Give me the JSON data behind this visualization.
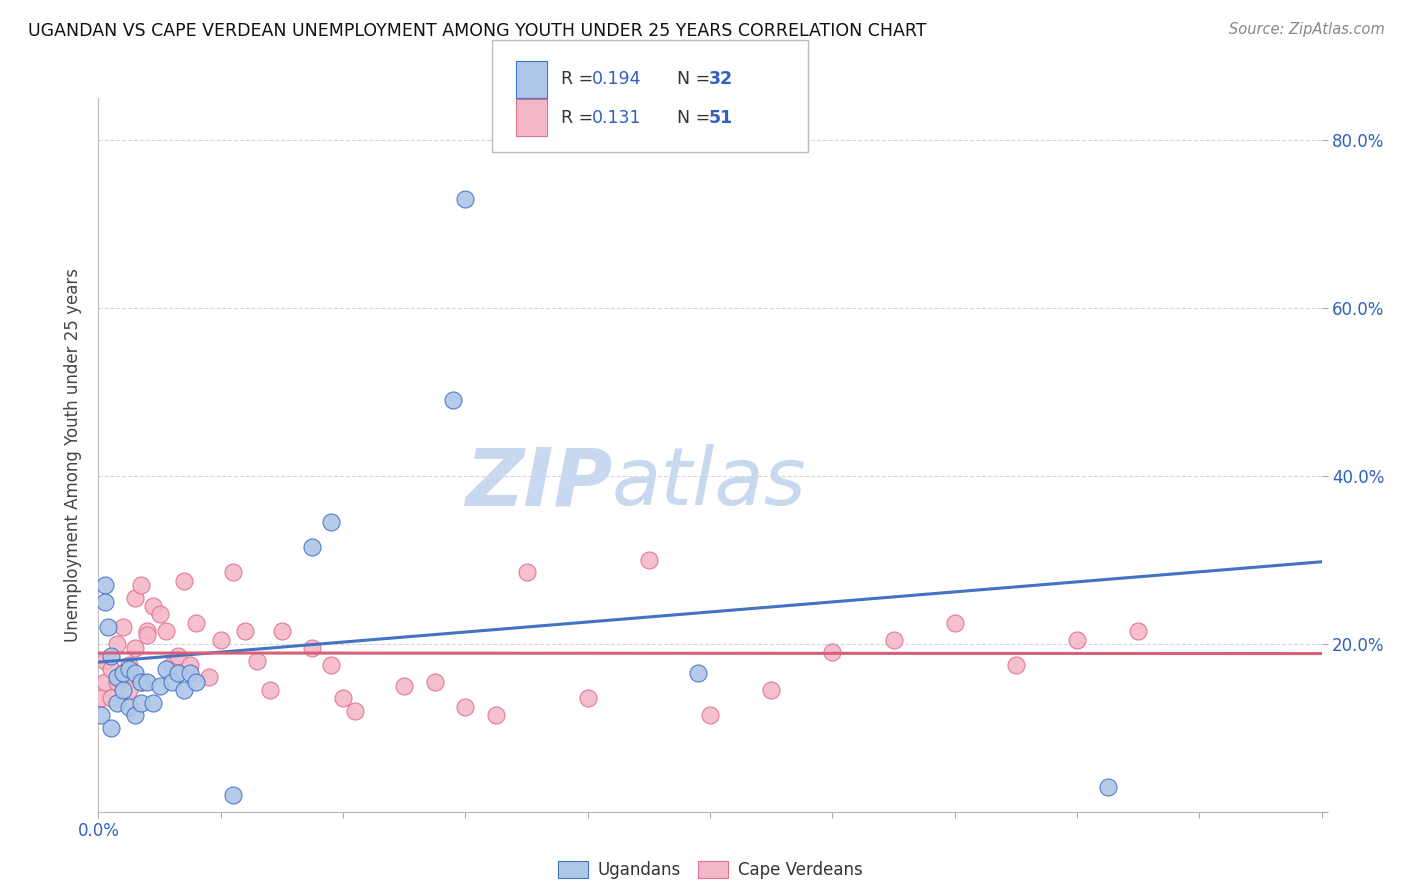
{
  "title": "UGANDAN VS CAPE VERDEAN UNEMPLOYMENT AMONG YOUTH UNDER 25 YEARS CORRELATION CHART",
  "source": "Source: ZipAtlas.com",
  "ylabel": "Unemployment Among Youth under 25 years",
  "xlim": [
    0.0,
    0.2
  ],
  "ylim": [
    0.0,
    0.85
  ],
  "yticks": [
    0.0,
    0.2,
    0.4,
    0.6,
    0.8
  ],
  "ytick_labels_right": [
    "",
    "20.0%",
    "40.0%",
    "60.0%",
    "80.0%"
  ],
  "xticks": [
    0.0,
    0.02,
    0.04,
    0.06,
    0.08,
    0.1,
    0.12,
    0.14,
    0.16,
    0.18,
    0.2
  ],
  "ugandan_fill_color": "#aec6e8",
  "ugandan_edge_color": "#4472c4",
  "capeverdean_fill_color": "#f4b8c8",
  "capeverdean_edge_color": "#e07090",
  "ugandan_line_color": "#4472c4",
  "capeverdean_line_color": "#d4607a",
  "R_uganda": 0.194,
  "N_uganda": 32,
  "R_capeverde": 0.131,
  "N_capeverde": 51,
  "ugandan_scatter_x": [
    0.0005,
    0.001,
    0.001,
    0.0015,
    0.002,
    0.002,
    0.003,
    0.003,
    0.004,
    0.004,
    0.005,
    0.005,
    0.006,
    0.006,
    0.007,
    0.007,
    0.008,
    0.009,
    0.01,
    0.011,
    0.012,
    0.013,
    0.014,
    0.015,
    0.016,
    0.022,
    0.035,
    0.038,
    0.058,
    0.06,
    0.098,
    0.165
  ],
  "ugandan_scatter_y": [
    0.115,
    0.27,
    0.25,
    0.22,
    0.185,
    0.1,
    0.16,
    0.13,
    0.165,
    0.145,
    0.17,
    0.125,
    0.165,
    0.115,
    0.155,
    0.13,
    0.155,
    0.13,
    0.15,
    0.17,
    0.155,
    0.165,
    0.145,
    0.165,
    0.155,
    0.02,
    0.315,
    0.345,
    0.49,
    0.73,
    0.165,
    0.03
  ],
  "capeverdean_scatter_x": [
    0.0005,
    0.001,
    0.001,
    0.002,
    0.002,
    0.003,
    0.003,
    0.004,
    0.004,
    0.005,
    0.005,
    0.006,
    0.006,
    0.007,
    0.007,
    0.008,
    0.008,
    0.009,
    0.01,
    0.011,
    0.012,
    0.013,
    0.014,
    0.015,
    0.016,
    0.018,
    0.02,
    0.022,
    0.024,
    0.026,
    0.028,
    0.03,
    0.035,
    0.038,
    0.04,
    0.042,
    0.05,
    0.055,
    0.06,
    0.065,
    0.07,
    0.08,
    0.09,
    0.1,
    0.11,
    0.12,
    0.13,
    0.14,
    0.15,
    0.16,
    0.17
  ],
  "capeverdean_scatter_y": [
    0.135,
    0.155,
    0.18,
    0.135,
    0.17,
    0.155,
    0.2,
    0.165,
    0.22,
    0.145,
    0.175,
    0.195,
    0.255,
    0.27,
    0.155,
    0.215,
    0.21,
    0.245,
    0.235,
    0.215,
    0.175,
    0.185,
    0.275,
    0.175,
    0.225,
    0.16,
    0.205,
    0.285,
    0.215,
    0.18,
    0.145,
    0.215,
    0.195,
    0.175,
    0.135,
    0.12,
    0.15,
    0.155,
    0.125,
    0.115,
    0.285,
    0.135,
    0.3,
    0.115,
    0.145,
    0.19,
    0.205,
    0.225,
    0.175,
    0.205,
    0.215
  ],
  "background_color": "#ffffff",
  "grid_color": "#cccccc",
  "watermark_zip_color": "#c8d8ef",
  "watermark_atlas_color": "#c8d8ef"
}
